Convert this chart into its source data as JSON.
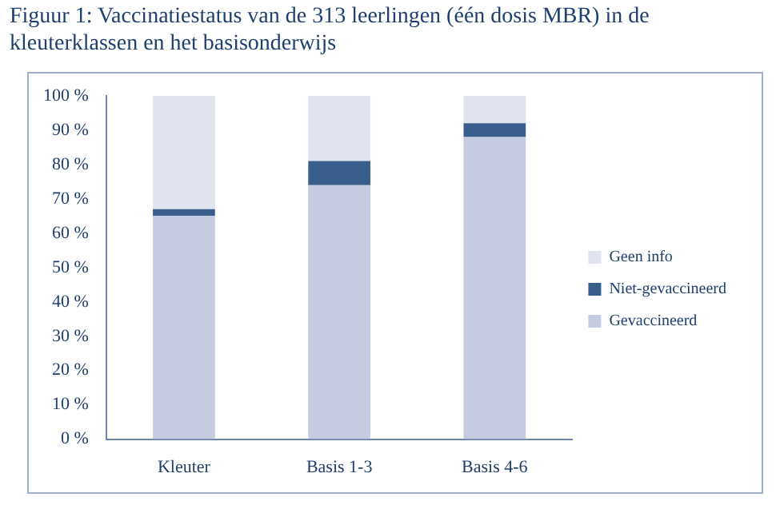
{
  "chart_data": {
    "type": "bar",
    "title": "Figuur 1: Vaccinatiestatus van de 313 leerlingen (één dosis MBR) in de kleuterklassen en het basisonderwijs",
    "categories": [
      "Kleuter",
      "Basis 1-3",
      "Basis 4-6"
    ],
    "stacked": true,
    "series": [
      {
        "name": "Gevaccineerd",
        "color": "#c5cbe0",
        "values": [
          65,
          74,
          88
        ]
      },
      {
        "name": "Niet-gevaccineerd",
        "color": "#3a5e8c",
        "values": [
          2,
          7,
          4
        ]
      },
      {
        "name": "Geen info",
        "color": "#e1e4ee",
        "values": [
          33,
          19,
          8
        ]
      }
    ],
    "ylim": [
      0,
      100
    ],
    "yticks": [
      {
        "value": 0,
        "label": "0 %"
      },
      {
        "value": 10,
        "label": "10 %"
      },
      {
        "value": 20,
        "label": "20 %"
      },
      {
        "value": 30,
        "label": "30 %"
      },
      {
        "value": 40,
        "label": "40 %"
      },
      {
        "value": 50,
        "label": "50 %"
      },
      {
        "value": 60,
        "label": "60 %"
      },
      {
        "value": 70,
        "label": "70 %"
      },
      {
        "value": 80,
        "label": "80 %"
      },
      {
        "value": 90,
        "label": "90 %"
      },
      {
        "value": 100,
        "label": "100 %"
      }
    ],
    "grid": false,
    "legend": "right"
  }
}
